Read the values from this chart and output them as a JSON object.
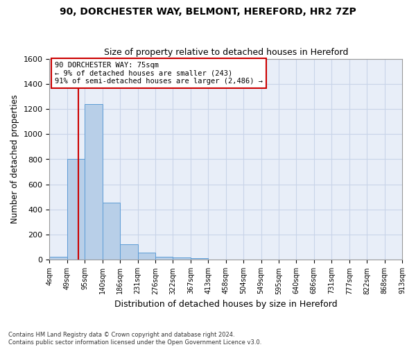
{
  "title_line1": "90, DORCHESTER WAY, BELMONT, HEREFORD, HR2 7ZP",
  "title_line2": "Size of property relative to detached houses in Hereford",
  "xlabel": "Distribution of detached houses by size in Hereford",
  "ylabel": "Number of detached properties",
  "footnote": "Contains HM Land Registry data © Crown copyright and database right 2024.\nContains public sector information licensed under the Open Government Licence v3.0.",
  "bin_labels": [
    "4sqm",
    "49sqm",
    "95sqm",
    "140sqm",
    "186sqm",
    "231sqm",
    "276sqm",
    "322sqm",
    "367sqm",
    "413sqm",
    "458sqm",
    "504sqm",
    "549sqm",
    "595sqm",
    "640sqm",
    "686sqm",
    "731sqm",
    "777sqm",
    "822sqm",
    "868sqm",
    "913sqm"
  ],
  "bar_heights": [
    25,
    805,
    1240,
    455,
    125,
    58,
    25,
    18,
    13,
    0,
    0,
    0,
    0,
    0,
    0,
    0,
    0,
    0,
    0,
    0
  ],
  "bar_color": "#b8cfe8",
  "bar_edge_color": "#5b9bd5",
  "grid_color": "#c8d4e8",
  "bg_color": "#e8eef8",
  "vline_bin": 1.65,
  "vline_color": "#cc0000",
  "annotation_text": "90 DORCHESTER WAY: 75sqm\n← 9% of detached houses are smaller (243)\n91% of semi-detached houses are larger (2,486) →",
  "ylim": [
    0,
    1600
  ],
  "yticks": [
    0,
    200,
    400,
    600,
    800,
    1000,
    1200,
    1400,
    1600
  ],
  "num_bins": 20
}
